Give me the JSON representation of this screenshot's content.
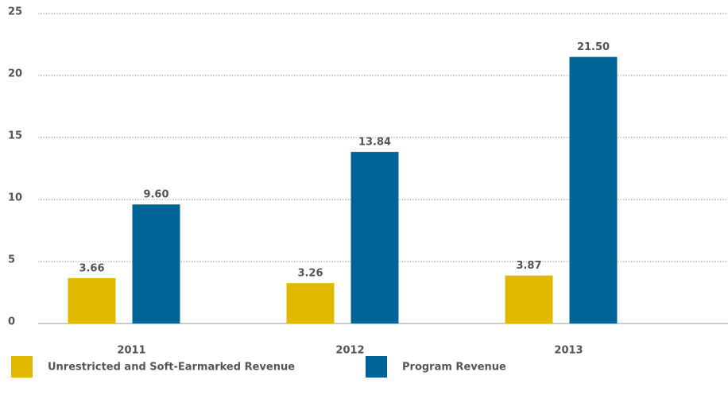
{
  "chart_data": {
    "type": "bar",
    "categories": [
      "2011",
      "2012",
      "2013"
    ],
    "series": [
      {
        "name": "Unrestricted and Soft-Earmarked Revenue",
        "color": "#e0b900",
        "values": [
          3.66,
          3.26,
          3.87
        ],
        "value_labels": [
          "3.66",
          "3.26",
          "3.87"
        ]
      },
      {
        "name": "Program Revenue",
        "color": "#006596",
        "values": [
          9.6,
          13.84,
          21.5
        ],
        "value_labels": [
          "9.60",
          "13.84",
          "21.50"
        ]
      }
    ],
    "ylim": [
      0,
      25
    ],
    "yticks": [
      0,
      5,
      10,
      15,
      20,
      25
    ],
    "grid": true
  }
}
